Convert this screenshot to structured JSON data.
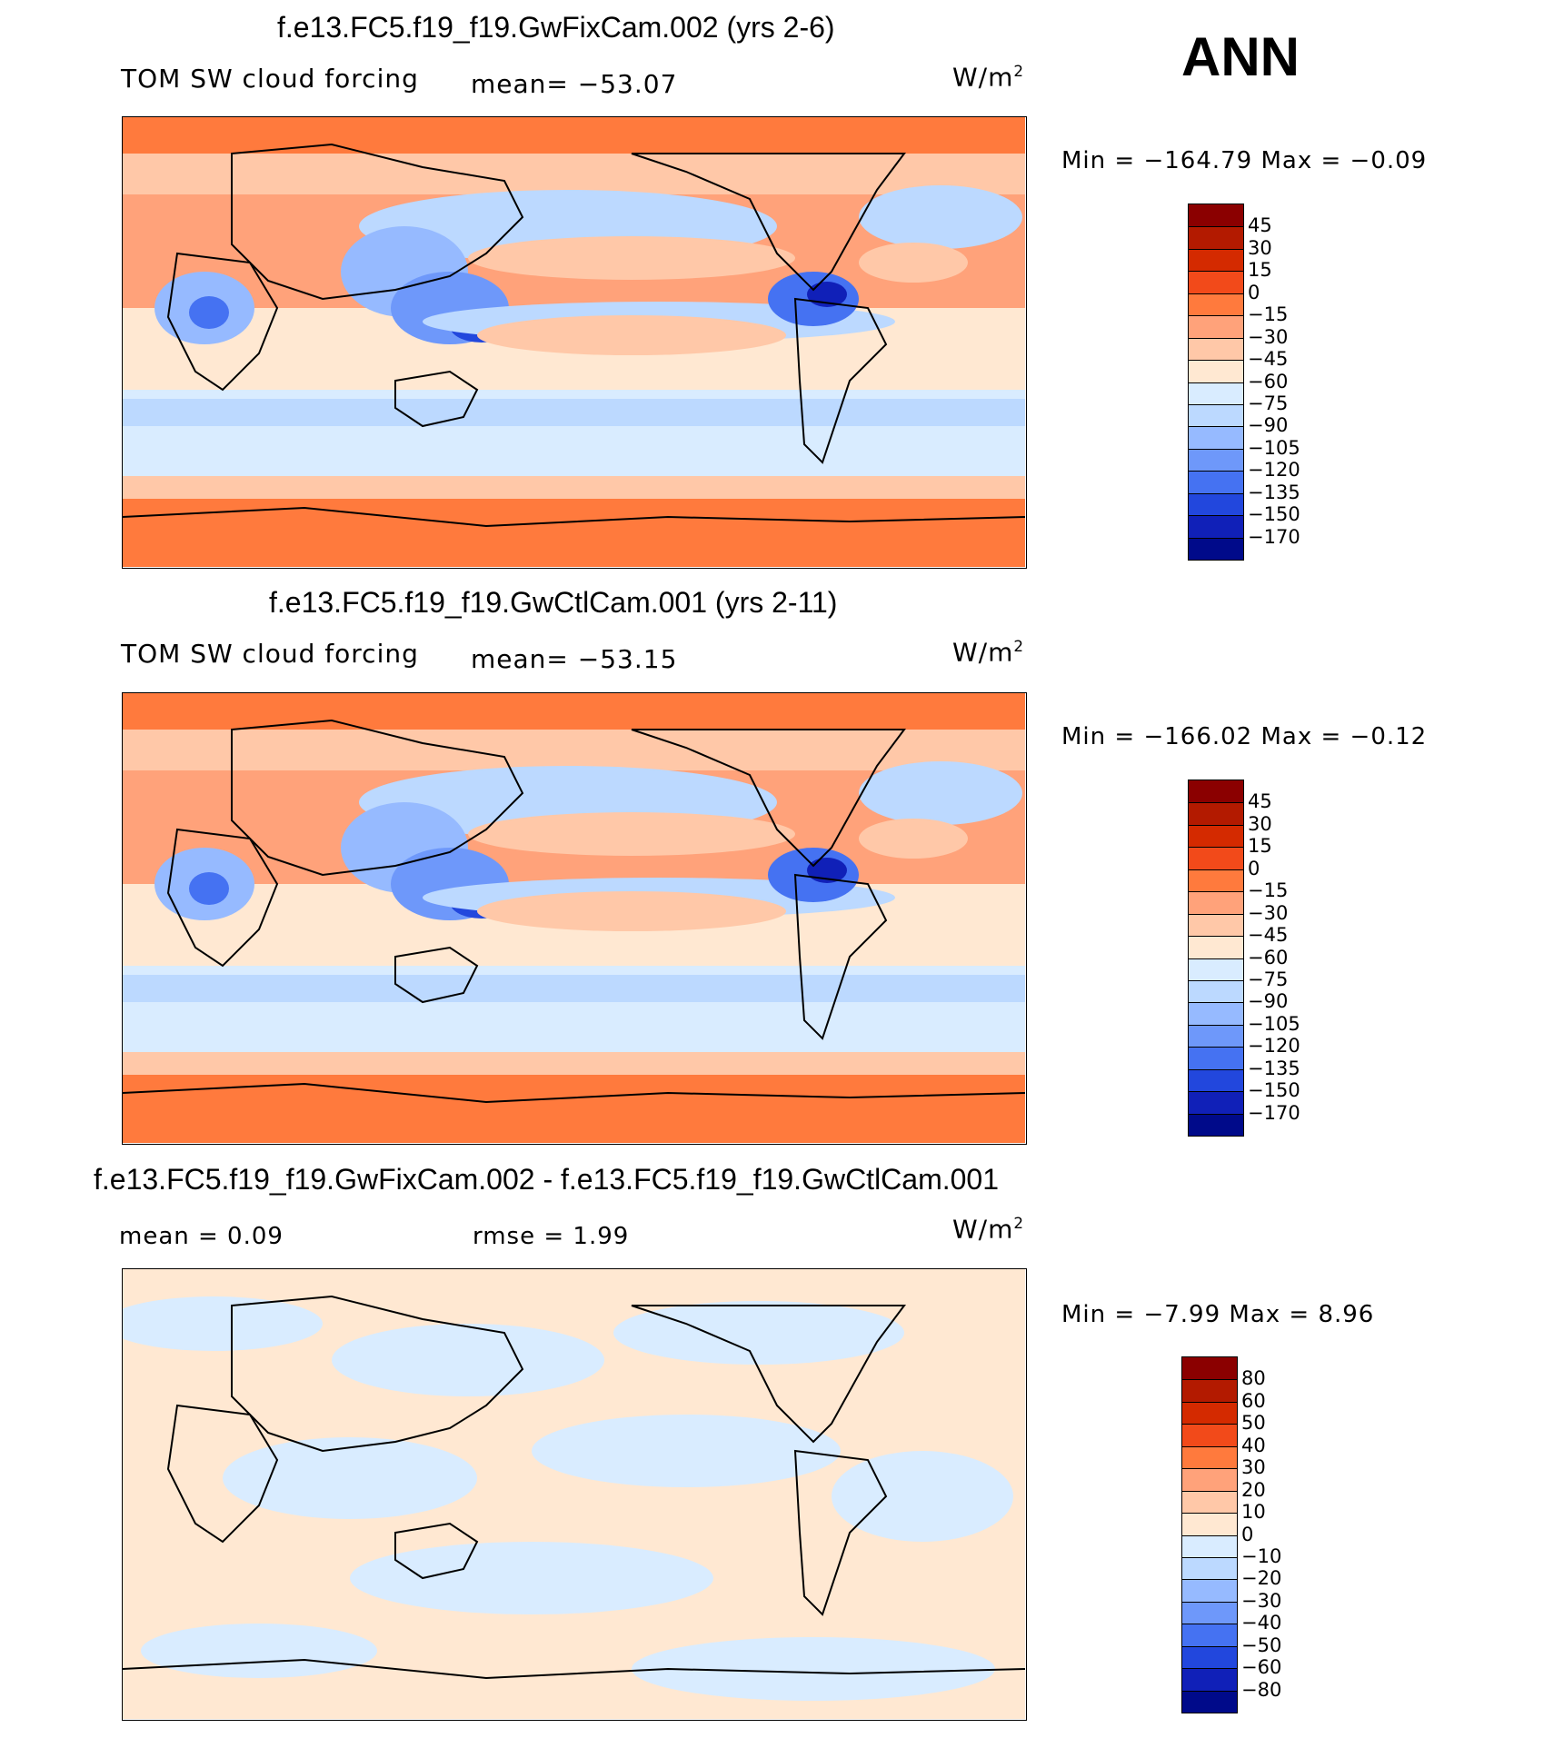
{
  "season_label": "ANN",
  "chart_data": [
    {
      "type": "heatmap",
      "title": "f.e13.FC5.f19_f19.GwFixCam.002 (yrs 2-6)",
      "variable": "TOM SW cloud forcing",
      "mean_text": "mean= −53.07",
      "mean": -53.07,
      "units": "W/m",
      "units_sup": "2",
      "min_text": "Min  =  −164.79  Max  =    −0.09",
      "min": -164.79,
      "max": -0.09,
      "colorbar_levels": [
        "45",
        "30",
        "15",
        "0",
        "−15",
        "−30",
        "−45",
        "−60",
        "−75",
        "−90",
        "−105",
        "−120",
        "−135",
        "−150",
        "−170"
      ],
      "colors": [
        "#8b0000",
        "#b31a00",
        "#d42a00",
        "#f24a1a",
        "#ff7a3d",
        "#ffa27a",
        "#ffc8a8",
        "#ffe8d2",
        "#d9ecff",
        "#bcd9ff",
        "#96baff",
        "#6e98fa",
        "#4572f2",
        "#2247dd",
        "#1020b8",
        "#000a8a"
      ]
    },
    {
      "type": "heatmap",
      "title": "f.e13.FC5.f19_f19.GwCtlCam.001 (yrs 2-11)",
      "variable": "TOM SW cloud forcing",
      "mean_text": "mean= −53.15",
      "mean": -53.15,
      "units": "W/m",
      "units_sup": "2",
      "min_text": "Min  =  −166.02  Max  =    −0.12",
      "min": -166.02,
      "max": -0.12,
      "colorbar_levels": [
        "45",
        "30",
        "15",
        "0",
        "−15",
        "−30",
        "−45",
        "−60",
        "−75",
        "−90",
        "−105",
        "−120",
        "−135",
        "−150",
        "−170"
      ],
      "colors": [
        "#8b0000",
        "#b31a00",
        "#d42a00",
        "#f24a1a",
        "#ff7a3d",
        "#ffa27a",
        "#ffc8a8",
        "#ffe8d2",
        "#d9ecff",
        "#bcd9ff",
        "#96baff",
        "#6e98fa",
        "#4572f2",
        "#2247dd",
        "#1020b8",
        "#000a8a"
      ]
    },
    {
      "type": "heatmap",
      "title": "f.e13.FC5.f19_f19.GwFixCam.002 - f.e13.FC5.f19_f19.GwCtlCam.001",
      "mean_text": "mean  =      0.09",
      "mean": 0.09,
      "rmse_text": "rmse  =      1.99",
      "rmse": 1.99,
      "units": "W/m",
      "units_sup": "2",
      "min_text": "Min  =     −7.99  Max  =      8.96",
      "min": -7.99,
      "max": 8.96,
      "colorbar_levels": [
        "80",
        "60",
        "50",
        "40",
        "30",
        "20",
        "10",
        "0",
        "−10",
        "−20",
        "−30",
        "−40",
        "−50",
        "−60",
        "−80"
      ],
      "colors": [
        "#8b0000",
        "#b31a00",
        "#d42a00",
        "#f24a1a",
        "#ff7a3d",
        "#ffa27a",
        "#ffc8a8",
        "#ffe8d2",
        "#d9ecff",
        "#bcd9ff",
        "#96baff",
        "#6e98fa",
        "#4572f2",
        "#2247dd",
        "#1020b8",
        "#000a8a"
      ]
    }
  ]
}
